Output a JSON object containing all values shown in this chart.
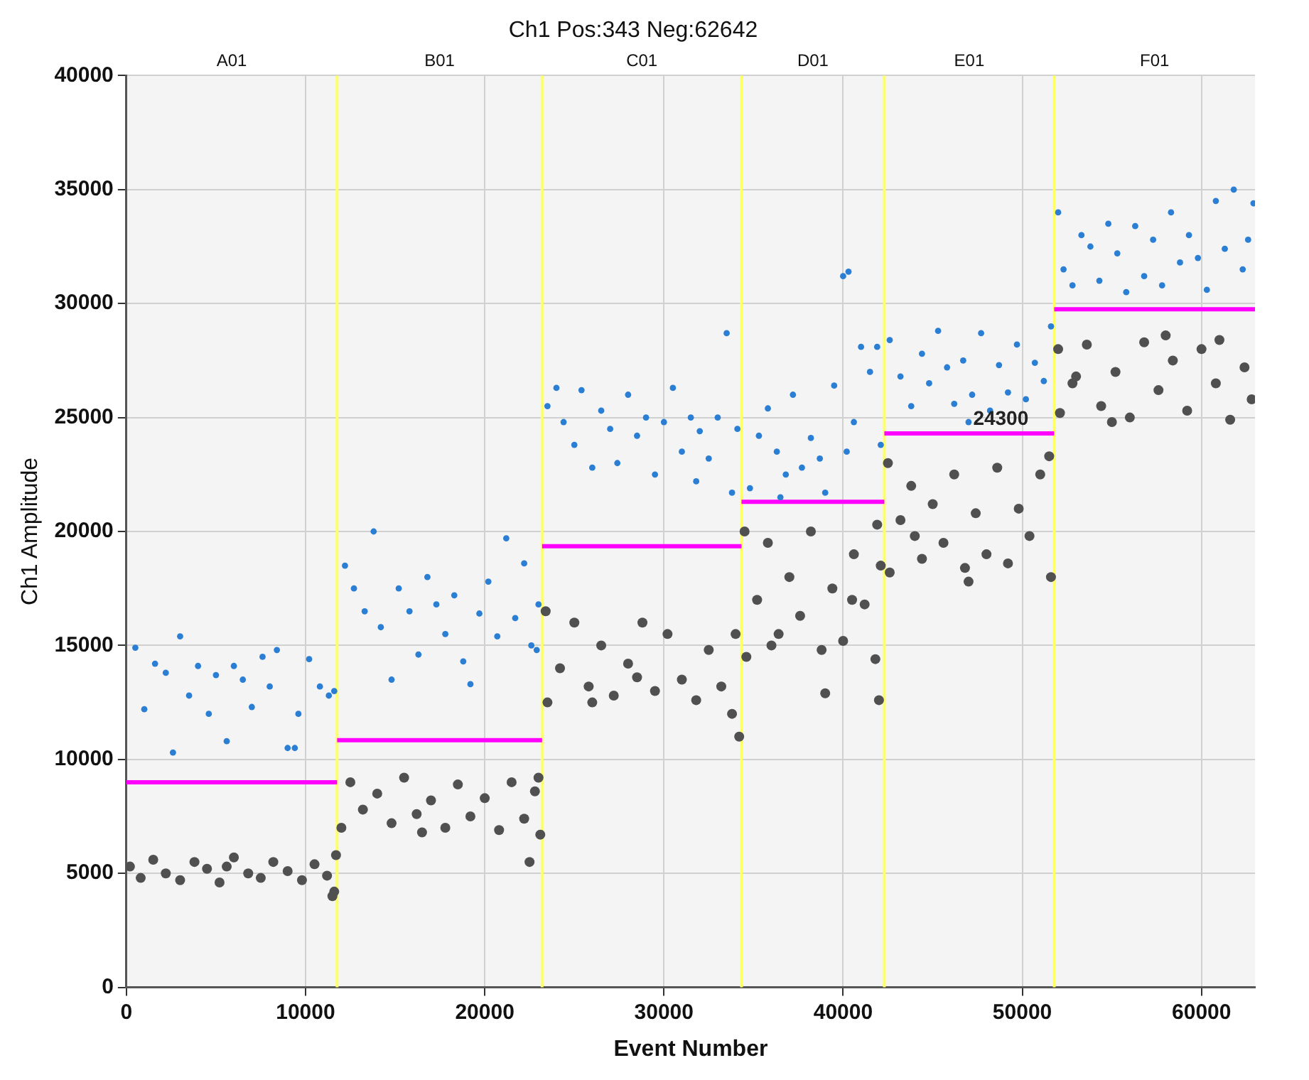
{
  "chart_data": {
    "type": "scatter",
    "title": "Ch1 Pos:343 Neg:62642",
    "xlabel": "Event Number",
    "ylabel": "Ch1 Amplitude",
    "xlim": [
      0,
      62985
    ],
    "xticks": [
      0,
      10000,
      20000,
      30000,
      40000,
      50000,
      60000
    ],
    "ylim": [
      0,
      40000
    ],
    "yticks": [
      0,
      5000,
      10000,
      15000,
      20000,
      25000,
      30000,
      35000,
      40000
    ],
    "grid": true,
    "legend": false,
    "ref_lines": [
      {
        "axis": "x",
        "value": 11760,
        "color": "#ffff66"
      },
      {
        "axis": "x",
        "value": 23200,
        "color": "#ffff66"
      },
      {
        "axis": "x",
        "value": 34330,
        "color": "#ffff66"
      },
      {
        "axis": "x",
        "value": 42300,
        "color": "#ffff66"
      },
      {
        "axis": "x",
        "value": 51780,
        "color": "#ffff66"
      }
    ],
    "annotations": [
      "A01",
      "B01",
      "C01",
      "D01",
      "E01",
      "F01",
      {
        "text": "24300",
        "x": 48800,
        "y": 24300
      }
    ],
    "series": [
      {
        "marker": "circle",
        "color": "#505050",
        "x": [
          200,
          800,
          1500,
          2200,
          3000,
          3800,
          4500,
          5200,
          6000,
          6800,
          7500,
          8200,
          9000,
          9800,
          10500,
          11200,
          11600,
          11700,
          11500,
          5600,
          12000,
          12500,
          13200,
          14000,
          14800,
          15500,
          16200,
          17000,
          17800,
          18500,
          19200,
          20000,
          20800,
          21500,
          22200,
          22800,
          23100,
          23000,
          16500,
          22500,
          23400,
          23500,
          24200,
          25000,
          25800,
          26500,
          27200,
          28000,
          28800,
          29500,
          30200,
          31000,
          31800,
          32500,
          33200,
          34000,
          34200,
          33800,
          28500,
          26000,
          34500,
          34600,
          35200,
          35800,
          36400,
          37000,
          37600,
          38200,
          38800,
          39400,
          40000,
          40600,
          41200,
          41800,
          42100,
          41900,
          39000,
          42000,
          36000,
          40500,
          42500,
          42600,
          43200,
          43800,
          44400,
          45000,
          45600,
          46200,
          46800,
          47400,
          48000,
          48600,
          49200,
          49800,
          50400,
          51000,
          51600,
          51500,
          47000,
          44000,
          52000,
          52100,
          52800,
          53600,
          54400,
          55200,
          56000,
          56800,
          57600,
          58400,
          59200,
          60000,
          60800,
          61600,
          62400,
          62800,
          55000,
          58000,
          61000,
          53000
        ],
        "values": [
          5300,
          4800,
          5600,
          5000,
          4700,
          5500,
          5200,
          4600,
          5700,
          5000,
          4800,
          5500,
          5100,
          4700,
          5400,
          4900,
          4200,
          5800,
          4000,
          5300,
          7000,
          9000,
          7800,
          8500,
          7200,
          9200,
          7600,
          8200,
          7000,
          8900,
          7500,
          8300,
          6900,
          9000,
          7400,
          8600,
          6700,
          9200,
          6800,
          5500,
          16500,
          12500,
          14000,
          16000,
          13200,
          15000,
          12800,
          14200,
          16000,
          13000,
          15500,
          13500,
          12600,
          14800,
          13200,
          15500,
          11000,
          12000,
          13600,
          12500,
          20000,
          14500,
          17000,
          19500,
          15500,
          18000,
          16300,
          20000,
          14800,
          17500,
          15200,
          19000,
          16800,
          14400,
          18500,
          20300,
          12900,
          12600,
          15000,
          17000,
          23000,
          18200,
          20500,
          22000,
          18800,
          21200,
          19500,
          22500,
          18400,
          20800,
          19000,
          22800,
          18600,
          21000,
          19800,
          22500,
          18000,
          23300,
          17800,
          19800,
          28000,
          25200,
          26500,
          28200,
          25500,
          27000,
          25000,
          28300,
          26200,
          27500,
          25300,
          28000,
          26500,
          24900,
          27200,
          25800,
          24800,
          28600,
          28400,
          26800
        ]
      },
      {
        "marker": "circle",
        "color": "#2a7fd4",
        "x": [
          500,
          1000,
          1600,
          2200,
          2600,
          3000,
          3500,
          4000,
          4600,
          5000,
          5600,
          6000,
          6500,
          7000,
          7600,
          8000,
          8400,
          9000,
          9600,
          10200,
          10800,
          11300,
          11600,
          9400,
          12200,
          12700,
          13300,
          13800,
          14200,
          14800,
          15200,
          15800,
          16300,
          16800,
          17300,
          17800,
          18300,
          18800,
          19200,
          19700,
          20200,
          20700,
          21200,
          21700,
          22200,
          22600,
          23000,
          22900,
          23500,
          24000,
          24400,
          25000,
          25400,
          26000,
          26500,
          27000,
          27400,
          28000,
          28500,
          29000,
          29500,
          30000,
          30500,
          31000,
          31500,
          32000,
          32500,
          33000,
          33500,
          33800,
          34100,
          31800,
          34800,
          35300,
          35800,
          36300,
          36800,
          37200,
          37700,
          38200,
          38700,
          39000,
          39500,
          40000,
          40300,
          40600,
          41000,
          41500,
          41900,
          42100,
          36500,
          40200,
          42600,
          43200,
          43800,
          44400,
          44800,
          45300,
          45800,
          46200,
          46700,
          47200,
          47700,
          48200,
          48700,
          49200,
          49700,
          50200,
          50700,
          51200,
          51600,
          47000,
          52000,
          52300,
          52800,
          53300,
          53800,
          54300,
          54800,
          55300,
          55800,
          56300,
          56800,
          57300,
          57800,
          58300,
          58800,
          59300,
          59800,
          60300,
          60800,
          61300,
          61800,
          62300,
          62600,
          62900
        ],
        "values": [
          14900,
          12200,
          14200,
          13800,
          10300,
          15400,
          12800,
          14100,
          12000,
          13700,
          10800,
          14100,
          13500,
          12300,
          14500,
          13200,
          14800,
          10500,
          12000,
          14400,
          13200,
          12800,
          13000,
          10500,
          18500,
          17500,
          16500,
          20000,
          15800,
          13500,
          17500,
          16500,
          14600,
          18000,
          16800,
          15500,
          17200,
          14300,
          13300,
          16400,
          17800,
          15400,
          19700,
          16200,
          18600,
          15000,
          16800,
          14800,
          25500,
          26300,
          24800,
          23800,
          26200,
          22800,
          25300,
          24500,
          23000,
          26000,
          24200,
          25000,
          22500,
          24800,
          26300,
          23500,
          25000,
          24400,
          23200,
          25000,
          28700,
          21700,
          24500,
          22200,
          21900,
          24200,
          25400,
          23500,
          22500,
          26000,
          22800,
          24100,
          23200,
          21700,
          26400,
          31200,
          31400,
          24800,
          28100,
          27000,
          28100,
          23800,
          21500,
          23500,
          28400,
          26800,
          25500,
          27800,
          26500,
          28800,
          27200,
          25600,
          27500,
          26000,
          28700,
          25300,
          27300,
          26100,
          28200,
          25800,
          27400,
          26600,
          29000,
          24800,
          34000,
          31500,
          30800,
          33000,
          32500,
          31000,
          33500,
          32200,
          30500,
          33400,
          31200,
          32800,
          30800,
          34000,
          31800,
          33000,
          32000,
          30600,
          34500,
          32400,
          35000,
          31500,
          32800,
          34400
        ]
      },
      {
        "type": "line",
        "marker": "none",
        "color": "#ff00ff",
        "x": [
          0,
          11760
        ],
        "values": [
          9000,
          9000
        ]
      },
      {
        "type": "line",
        "marker": "none",
        "color": "#ff00ff",
        "x": [
          11760,
          23200
        ],
        "values": [
          10840,
          10840
        ]
      },
      {
        "type": "line",
        "marker": "none",
        "color": "#ff00ff",
        "x": [
          23200,
          34330
        ],
        "values": [
          19350,
          19350
        ]
      },
      {
        "type": "line",
        "marker": "none",
        "color": "#ff00ff",
        "x": [
          34330,
          42300
        ],
        "values": [
          21300,
          21300
        ]
      },
      {
        "type": "line",
        "marker": "none",
        "color": "#ff00ff",
        "x": [
          42300,
          51780
        ],
        "values": [
          24300,
          24300
        ]
      },
      {
        "type": "line",
        "marker": "none",
        "color": "#ff00ff",
        "x": [
          51780,
          62985
        ],
        "values": [
          29750,
          29750
        ]
      }
    ]
  }
}
